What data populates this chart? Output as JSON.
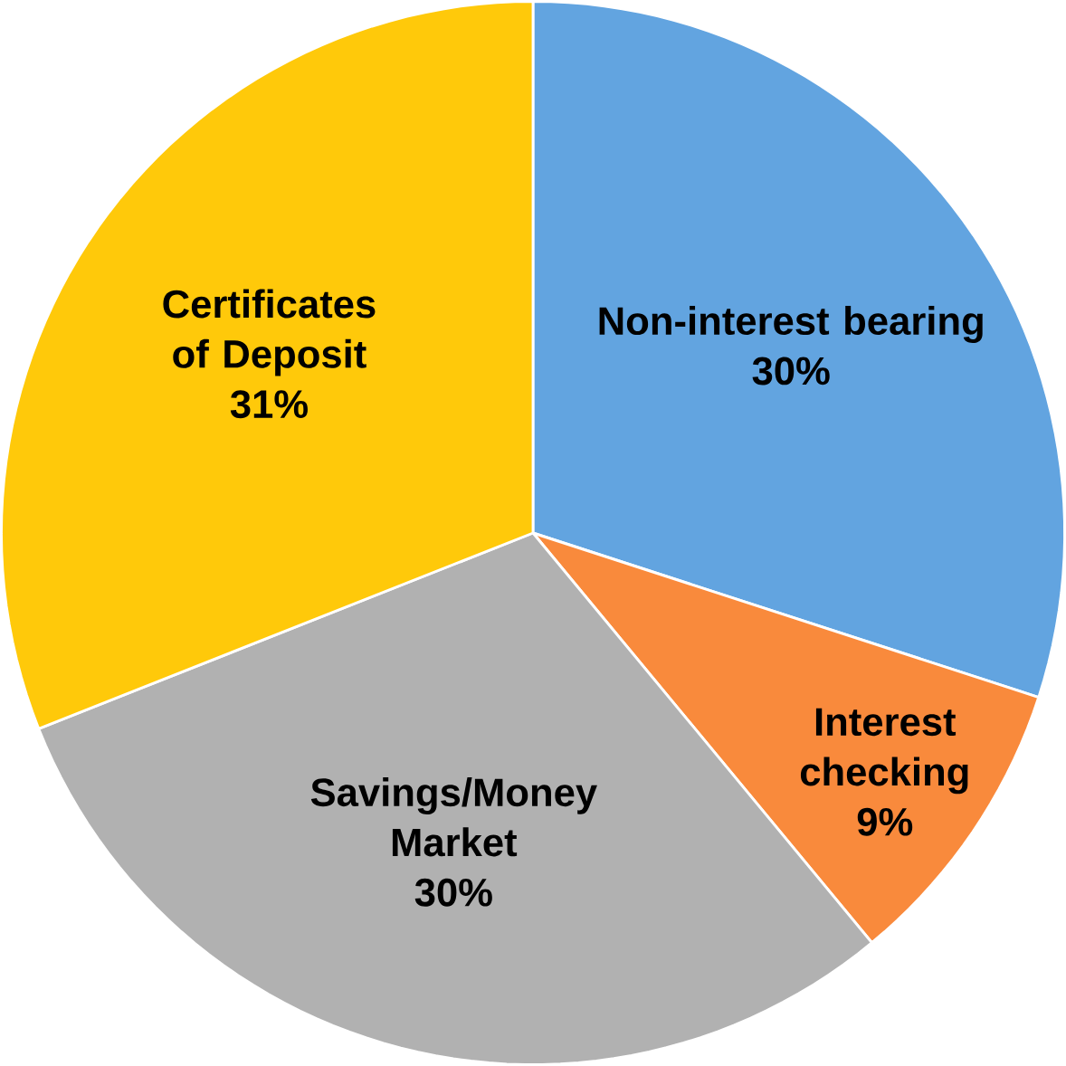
{
  "chart_data": {
    "type": "pie",
    "categories": [
      "Non-interest bearing",
      "Interest checking",
      "Savings/Money Market",
      "Certificates of Deposit"
    ],
    "values": [
      30,
      9,
      30,
      31
    ],
    "value_labels": [
      "30%",
      "9%",
      "30%",
      "31%"
    ],
    "colors": [
      "#62a4e0",
      "#f98a3c",
      "#b1b1b1",
      "#ffc90a"
    ]
  }
}
